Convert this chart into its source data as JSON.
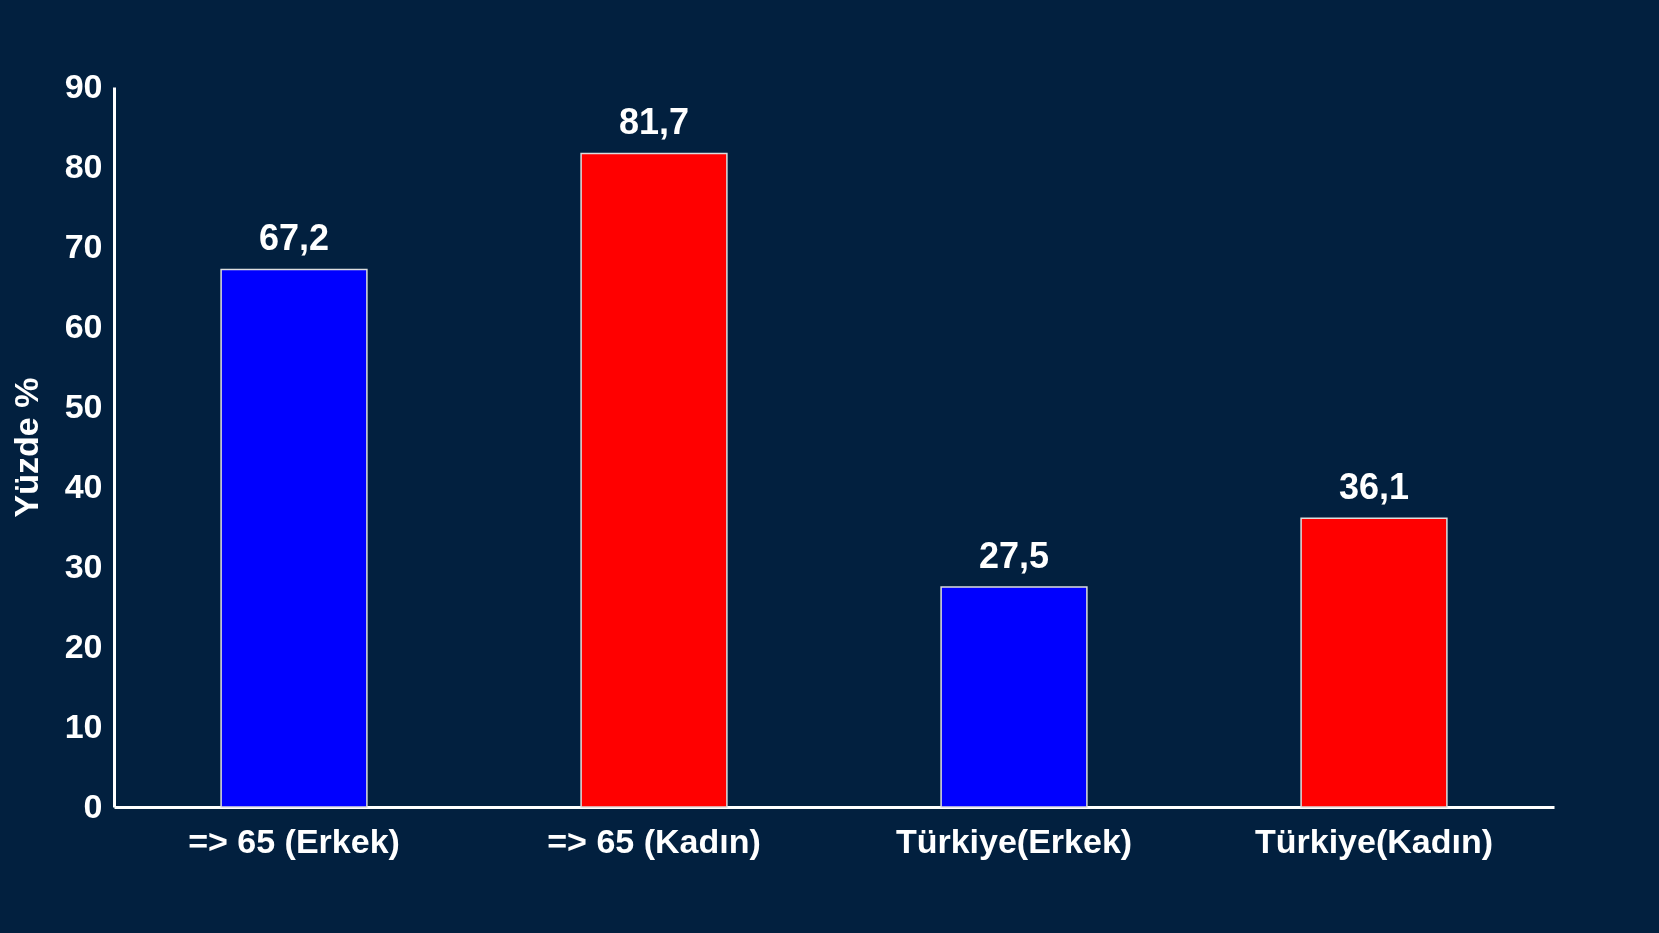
{
  "chart_data": {
    "type": "bar",
    "ylabel": "Yüzde %",
    "categories": [
      "=> 65 (Erkek)",
      "=> 65 (Kadın)",
      "Türkiye(Erkek)",
      "Türkiye(Kadın)"
    ],
    "values": [
      67.2,
      81.7,
      27.5,
      36.1
    ],
    "colors": [
      "#0000ff",
      "#ff0000",
      "#0000ff",
      "#ff0000"
    ],
    "value_labels": [
      "67,2",
      "81,7",
      "27,5",
      "36,1"
    ],
    "ylim": [
      0,
      90
    ],
    "yticks": [
      0,
      10,
      20,
      30,
      40,
      50,
      60,
      70,
      80,
      90
    ],
    "grid": false
  }
}
